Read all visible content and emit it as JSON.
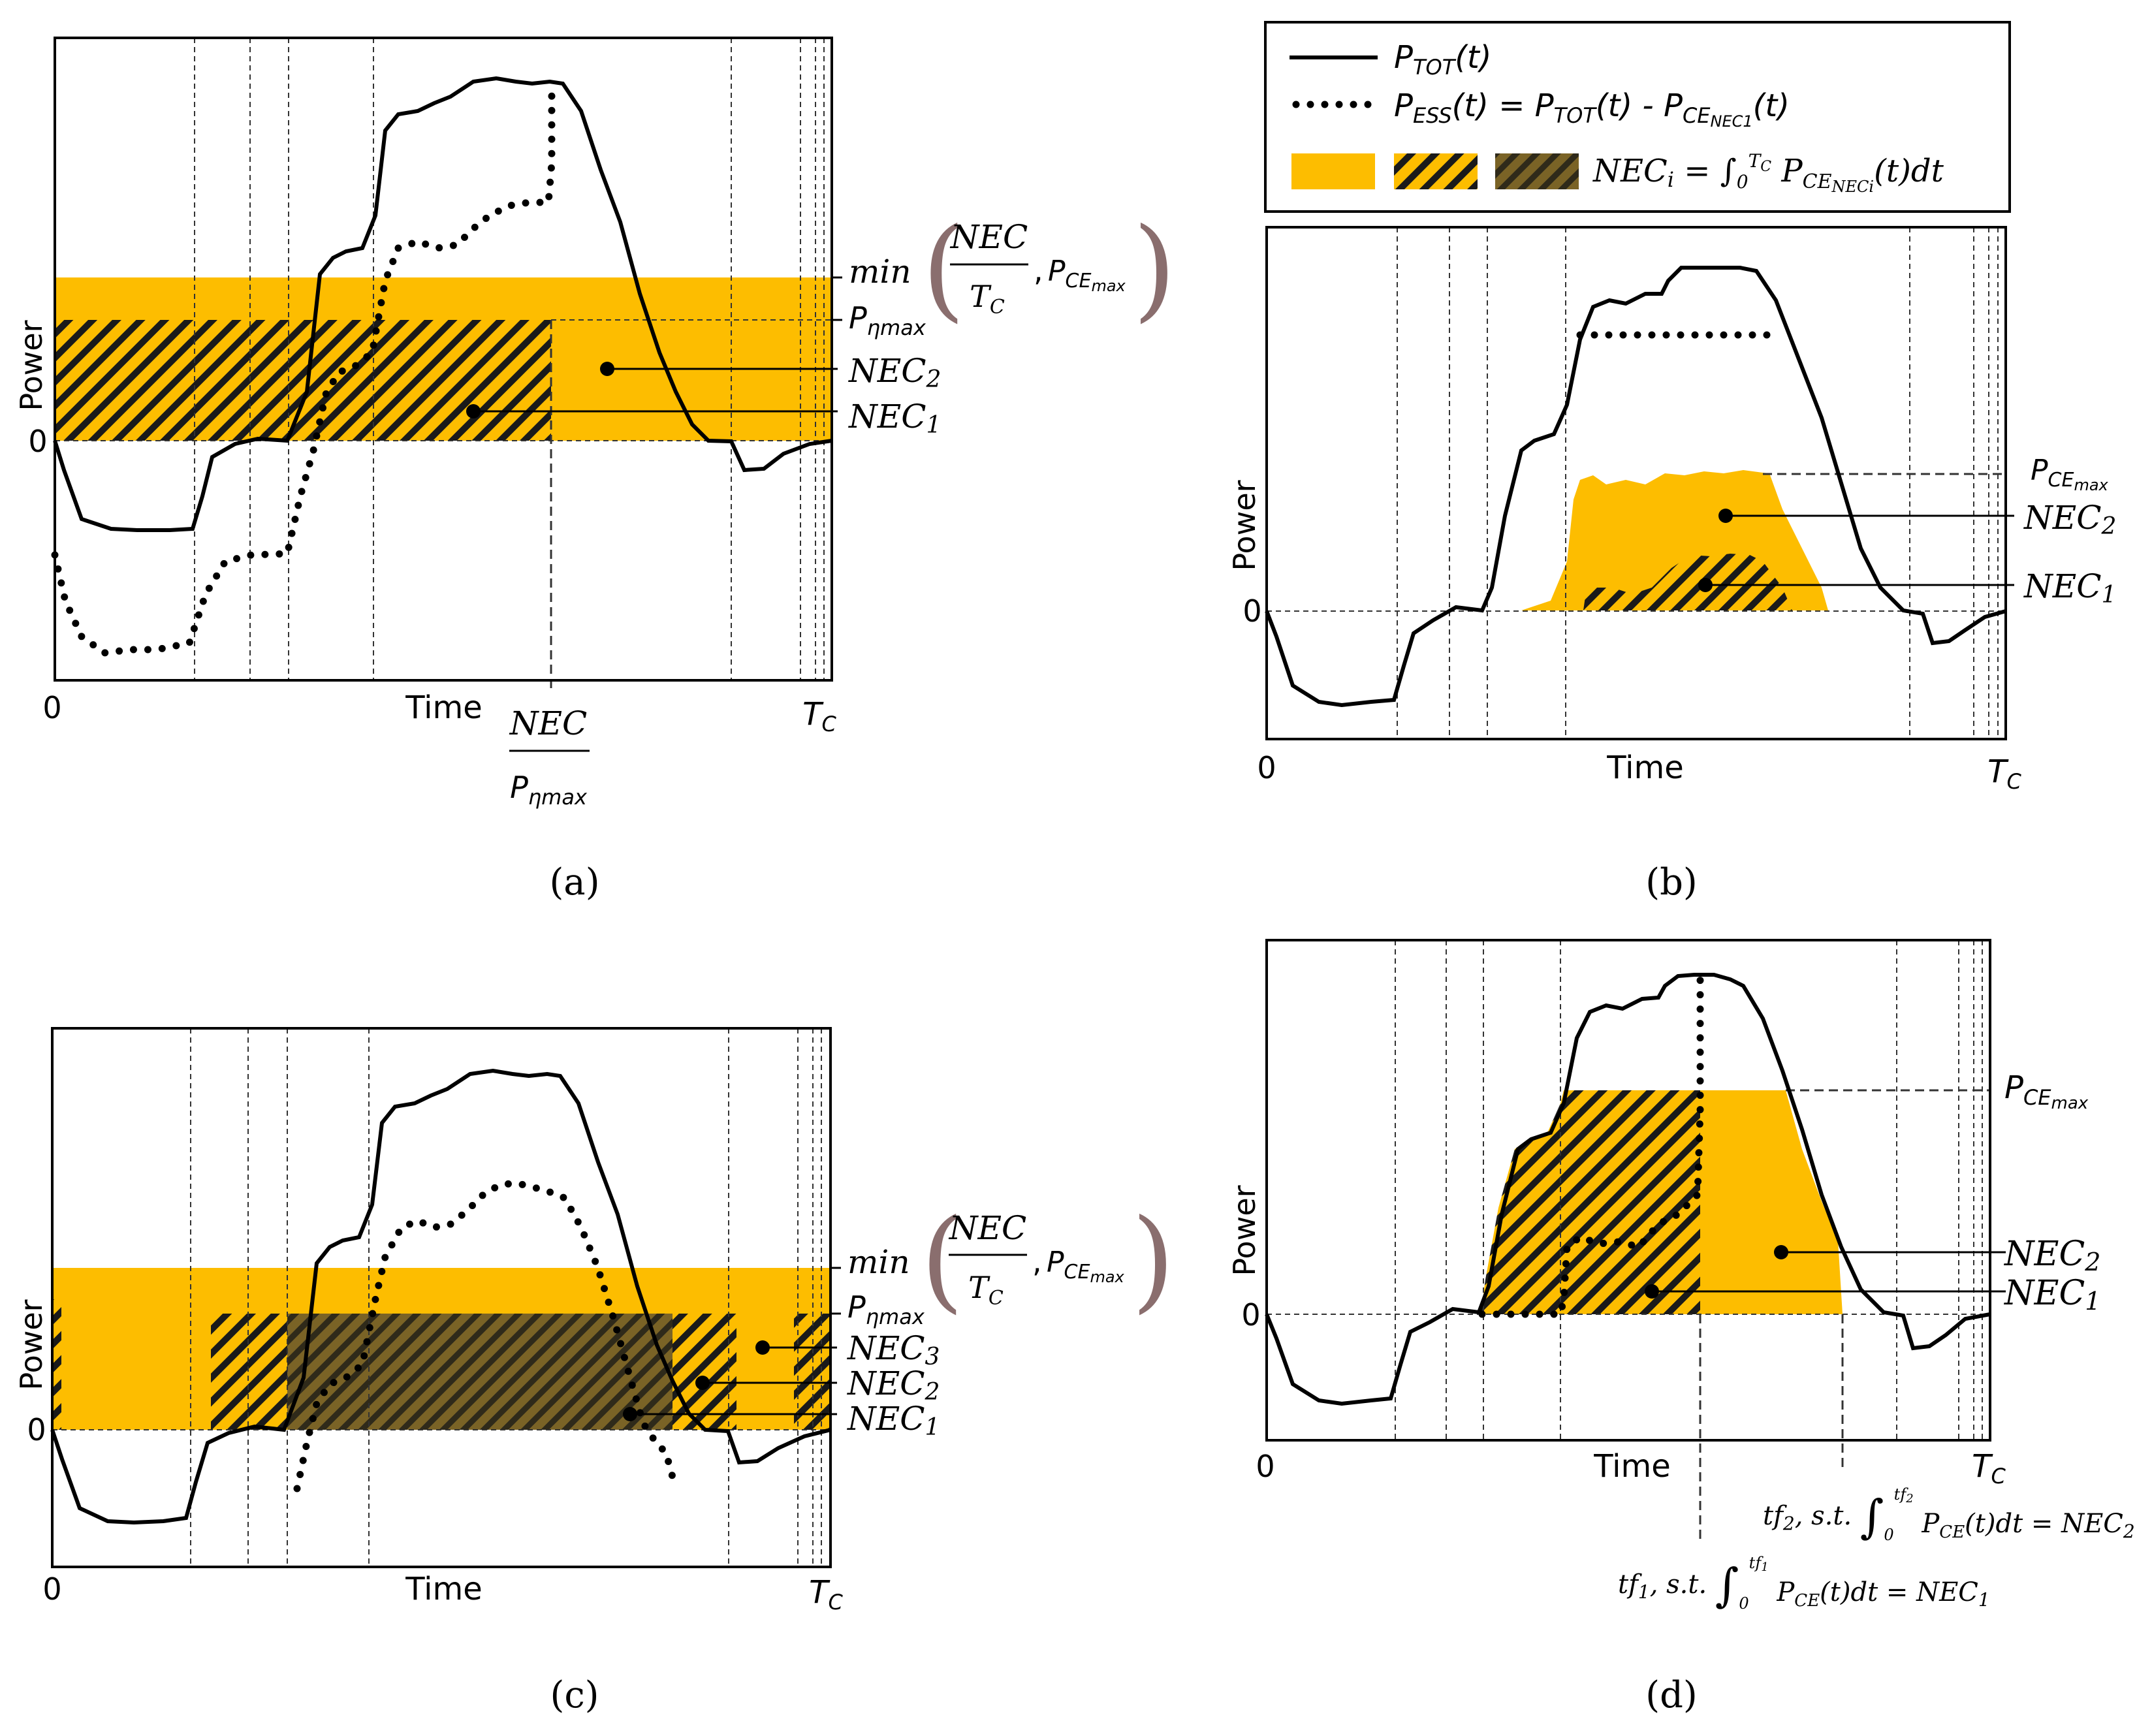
{
  "chart_data": [
    {
      "panel": "a",
      "type": "area",
      "caption": "(a)",
      "xlabel": "Time",
      "ylabel": "Power",
      "x_tick_labels": [
        "0",
        "NEC / Pηmax",
        "T_C"
      ],
      "y_tick_labels": [
        "0"
      ],
      "annotations": [
        "min(NEC/T_C, P_CEmax)",
        "P_ηmax",
        "NEC_2",
        "NEC_1"
      ],
      "series": [
        {
          "name": "P_TOT(t)",
          "style": "solid",
          "values": [
            [
              0,
              0
            ],
            [
              0.02,
              -0.18
            ],
            [
              0.1,
              -0.31
            ],
            [
              0.17,
              -0.32
            ],
            [
              0.2,
              -0.22
            ],
            [
              0.25,
              -0.03
            ],
            [
              0.28,
              0
            ],
            [
              0.31,
              0.05
            ],
            [
              0.34,
              0.32
            ],
            [
              0.38,
              0.58
            ],
            [
              0.42,
              0.8
            ],
            [
              0.45,
              0.97
            ],
            [
              0.48,
              1.08
            ],
            [
              0.55,
              1.12
            ],
            [
              0.6,
              1.15
            ],
            [
              0.64,
              1.1
            ],
            [
              0.7,
              0.9
            ],
            [
              0.74,
              0.55
            ],
            [
              0.78,
              0.2
            ],
            [
              0.82,
              0
            ],
            [
              0.87,
              -0.1
            ],
            [
              0.93,
              -0.05
            ],
            [
              1,
              0
            ]
          ]
        },
        {
          "name": "P_ESS(t) = P_TOT(t) - P_CE_NEC1(t)",
          "style": "dotted",
          "values": [
            [
              0,
              -0.47
            ],
            [
              0.05,
              -0.68
            ],
            [
              0.1,
              -0.72
            ],
            [
              0.17,
              -0.72
            ],
            [
              0.22,
              -0.55
            ],
            [
              0.28,
              -0.38
            ],
            [
              0.31,
              -0.36
            ],
            [
              0.35,
              -0.05
            ],
            [
              0.38,
              0.16
            ],
            [
              0.42,
              0.3
            ],
            [
              0.45,
              0.5
            ],
            [
              0.48,
              0.64
            ],
            [
              0.55,
              0.75
            ],
            [
              0.6,
              0.82
            ],
            [
              0.64,
              0.88
            ],
            [
              0.64,
              1.08
            ]
          ]
        }
      ],
      "regions": [
        {
          "name": "NEC_2",
          "fill": "solid",
          "x": [
            0,
            1
          ],
          "y": [
            0,
            0.5
          ]
        },
        {
          "name": "NEC_1",
          "fill": "hatched",
          "x": [
            0,
            0.64
          ],
          "y": [
            0,
            0.37
          ]
        }
      ]
    },
    {
      "panel": "b",
      "type": "area",
      "caption": "(b)",
      "xlabel": "Time",
      "ylabel": "Power",
      "x_tick_labels": [
        "0",
        "T_C"
      ],
      "y_tick_labels": [
        "0"
      ],
      "annotations": [
        "P_CEmax",
        "NEC_2",
        "NEC_1"
      ],
      "legend": {
        "position": "top",
        "entries": [
          "P_TOT(t)",
          "P_ESS(t) = P_TOT(t) - P_CE_NEC1(t)",
          "NEC_i = ∫_0^T_C P_CE_NECi(t)dt"
        ]
      },
      "series": [
        {
          "name": "P_TOT(t)",
          "style": "solid",
          "values": [
            [
              0,
              0
            ],
            [
              0.02,
              -0.18
            ],
            [
              0.1,
              -0.31
            ],
            [
              0.17,
              -0.32
            ],
            [
              0.2,
              -0.22
            ],
            [
              0.25,
              -0.03
            ],
            [
              0.28,
              0
            ],
            [
              0.31,
              0.05
            ],
            [
              0.34,
              0.32
            ],
            [
              0.38,
              0.58
            ],
            [
              0.42,
              0.8
            ],
            [
              0.45,
              0.97
            ],
            [
              0.48,
              1.08
            ],
            [
              0.55,
              1.12
            ],
            [
              0.6,
              1.15
            ],
            [
              0.64,
              1.1
            ],
            [
              0.7,
              0.9
            ],
            [
              0.74,
              0.55
            ],
            [
              0.78,
              0.2
            ],
            [
              0.82,
              0
            ],
            [
              0.87,
              -0.1
            ],
            [
              0.93,
              -0.05
            ],
            [
              1,
              0
            ]
          ]
        },
        {
          "name": "P_ESS(t)",
          "style": "dotted",
          "values": [
            [
              0.4,
              0.9
            ],
            [
              0.65,
              0.9
            ]
          ]
        }
      ],
      "regions": [
        {
          "name": "NEC_2",
          "fill": "solid",
          "x": [
            0.33,
            0.72
          ],
          "y": [
            0,
            0.46
          ]
        },
        {
          "name": "NEC_1",
          "fill": "hatched",
          "x": [
            0.41,
            0.67
          ],
          "y": [
            0,
            0.18
          ]
        }
      ]
    },
    {
      "panel": "c",
      "type": "area",
      "caption": "(c)",
      "xlabel": "Time",
      "ylabel": "Power",
      "x_tick_labels": [
        "0",
        "T_C"
      ],
      "y_tick_labels": [
        "0"
      ],
      "annotations": [
        "min(NEC/T_C, P_CEmax)",
        "P_ηmax",
        "NEC_3",
        "NEC_2",
        "NEC_1"
      ],
      "series": [
        {
          "name": "P_TOT(t)",
          "style": "solid",
          "values": [
            [
              0,
              0
            ],
            [
              0.02,
              -0.18
            ],
            [
              0.1,
              -0.31
            ],
            [
              0.17,
              -0.32
            ],
            [
              0.2,
              -0.22
            ],
            [
              0.25,
              -0.03
            ],
            [
              0.28,
              0
            ],
            [
              0.31,
              0.05
            ],
            [
              0.34,
              0.32
            ],
            [
              0.38,
              0.58
            ],
            [
              0.42,
              0.8
            ],
            [
              0.45,
              0.97
            ],
            [
              0.48,
              1.08
            ],
            [
              0.55,
              1.12
            ],
            [
              0.6,
              1.15
            ],
            [
              0.64,
              1.1
            ],
            [
              0.7,
              0.9
            ],
            [
              0.74,
              0.55
            ],
            [
              0.78,
              0.2
            ],
            [
              0.82,
              0
            ],
            [
              0.87,
              -0.1
            ],
            [
              0.93,
              -0.05
            ],
            [
              1,
              0
            ]
          ]
        },
        {
          "name": "P_ESS(t)",
          "style": "dotted",
          "values": [
            [
              0.31,
              -0.38
            ],
            [
              0.34,
              -0.05
            ],
            [
              0.38,
              0.16
            ],
            [
              0.42,
              0.3
            ],
            [
              0.45,
              0.45
            ],
            [
              0.5,
              0.58
            ],
            [
              0.55,
              0.62
            ],
            [
              0.6,
              0.62
            ],
            [
              0.66,
              0.55
            ],
            [
              0.7,
              0.35
            ],
            [
              0.75,
              0.05
            ],
            [
              0.78,
              -0.2
            ],
            [
              0.8,
              -0.3
            ]
          ]
        }
      ],
      "regions": [
        {
          "name": "NEC_3",
          "fill": "solid",
          "x": [
            0,
            1
          ],
          "y": [
            0,
            0.5
          ]
        },
        {
          "name": "NEC_2",
          "fill": "hatched",
          "x": [
            0.2,
            0.88
          ],
          "y": [
            0,
            0.37
          ]
        },
        {
          "name": "NEC_1",
          "fill": "dense-hatched",
          "x": [
            0.32,
            0.8
          ],
          "y": [
            0,
            0.37
          ]
        }
      ]
    },
    {
      "panel": "d",
      "type": "area",
      "caption": "(d)",
      "xlabel": "Time",
      "ylabel": "Power",
      "x_tick_labels": [
        "0",
        "T_C"
      ],
      "y_tick_labels": [
        "0"
      ],
      "annotations": [
        "P_CEmax",
        "NEC_2",
        "NEC_1",
        "tf_2, s.t. ∫_0^tf_2 P_CE(t)dt = NEC_2",
        "tf_1, s.t. ∫_0^tf_1 P_CE(t)dt = NEC_1"
      ],
      "series": [
        {
          "name": "P_TOT(t)",
          "style": "solid",
          "values": [
            [
              0,
              0
            ],
            [
              0.02,
              -0.18
            ],
            [
              0.1,
              -0.31
            ],
            [
              0.17,
              -0.32
            ],
            [
              0.2,
              -0.22
            ],
            [
              0.25,
              -0.03
            ],
            [
              0.28,
              0
            ],
            [
              0.31,
              0.05
            ],
            [
              0.34,
              0.32
            ],
            [
              0.38,
              0.58
            ],
            [
              0.42,
              0.8
            ],
            [
              0.45,
              0.97
            ],
            [
              0.48,
              1.08
            ],
            [
              0.55,
              1.12
            ],
            [
              0.6,
              1.15
            ],
            [
              0.64,
              1.1
            ],
            [
              0.7,
              0.9
            ],
            [
              0.74,
              0.55
            ],
            [
              0.78,
              0.2
            ],
            [
              0.82,
              0
            ],
            [
              0.87,
              -0.1
            ],
            [
              0.93,
              -0.05
            ],
            [
              1,
              0
            ]
          ]
        },
        {
          "name": "P_ESS(t)",
          "style": "dotted",
          "values": [
            [
              0.28,
              0
            ],
            [
              0.39,
              0
            ],
            [
              0.39,
              0.2
            ],
            [
              0.46,
              0.22
            ],
            [
              0.5,
              0.12
            ],
            [
              0.52,
              0.2
            ],
            [
              0.55,
              0.32
            ],
            [
              0.56,
              0.48
            ],
            [
              0.56,
              1.2
            ]
          ]
        }
      ],
      "regions": [
        {
          "name": "NEC_2",
          "fill": "solid",
          "x": [
            0.56,
            0.74
          ],
          "y": [
            0,
            0.73
          ]
        },
        {
          "name": "NEC_1",
          "fill": "hatched",
          "x": [
            0.28,
            0.56
          ],
          "y": [
            0,
            0.73
          ]
        }
      ]
    }
  ],
  "labels": {
    "time": "Time",
    "power": "Power",
    "zero": "0",
    "caption_a": "(a)",
    "caption_b": "(b)",
    "caption_c": "(c)",
    "caption_d": "(d)",
    "min": "min",
    "nec": "NEC",
    "comma": ",",
    "legend_ptot": "P_TOT(t)",
    "legend_pess": "P_ESS(t) = P_TOT(t) - P_CE_NEC1(t)",
    "legend_nec": "NEC_i = ∫_0^T_C P_CE_NECi(t)dt",
    "tf2_condition": "tf_2, s.t. ∫_0^tf_2 P_CE(t)dt = NEC_2",
    "tf1_condition": "tf_1, s.t. ∫_0^tf_1 P_CE(t)dt = NEC_1"
  },
  "colors": {
    "fill": "#FDBD00",
    "hatch_dark": "#2b2b2b",
    "nec1_dense": "#5b4a1c",
    "line": "#000000"
  }
}
